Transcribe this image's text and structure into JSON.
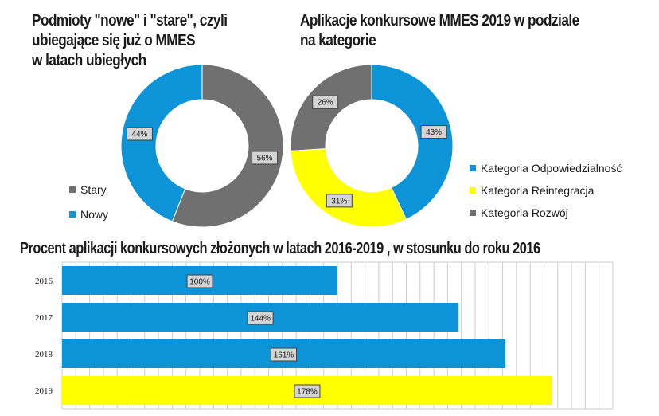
{
  "colors": {
    "blue": "#0d94d8",
    "gray": "#707070",
    "yellow": "#ffff00",
    "grid": "#cccccc",
    "label_bg": "#d4d4d4"
  },
  "chart_data": [
    {
      "type": "pie",
      "title_lines": [
        "Podmioty \"nowe\" i \"stare\", czyli",
        "ubiegające się już o MMES",
        "w latach ubiegłych"
      ],
      "slices": [
        {
          "name": "Stary",
          "value": 56,
          "label": "56%",
          "color": "#707070"
        },
        {
          "name": "Nowy",
          "value": 44,
          "label": "44%",
          "color": "#0d94d8"
        }
      ],
      "legend": [
        {
          "name": "Stary",
          "color": "#707070"
        },
        {
          "name": "Nowy",
          "color": "#0d94d8"
        }
      ],
      "legend_position": "bottom-left"
    },
    {
      "type": "pie",
      "title_lines": [
        "Aplikacje konkursowe MMES 2019 w podziale",
        "na kategorie"
      ],
      "slices": [
        {
          "name": "Kategoria Odpowiedzialność",
          "value": 43,
          "label": "43%",
          "color": "#0d94d8"
        },
        {
          "name": "Kategoria Reintegracja",
          "value": 31,
          "label": "31%",
          "color": "#ffff00"
        },
        {
          "name": "Kategoria Rozwój",
          "value": 26,
          "label": "26%",
          "color": "#707070"
        }
      ],
      "legend": [
        {
          "name": "Kategoria Odpowiedzialność",
          "color": "#0d94d8"
        },
        {
          "name": "Kategoria Reintegracja",
          "color": "#ffff00"
        },
        {
          "name": "Kategoria Rozwój",
          "color": "#707070"
        }
      ],
      "legend_position": "right"
    },
    {
      "type": "bar",
      "orientation": "horizontal",
      "title": "Procent aplikacji konkursowych złożonych w latach 2016-2019 , w stosunku do roku 2016",
      "categories": [
        "2016",
        "2017",
        "2018",
        "2019"
      ],
      "values": [
        100,
        144,
        161,
        178
      ],
      "labels": [
        "100%",
        "144%",
        "161%",
        "178%"
      ],
      "colors": [
        "#0d94d8",
        "#0d94d8",
        "#0d94d8",
        "#ffff00"
      ],
      "xlim": [
        0,
        200
      ],
      "grid": true
    }
  ]
}
